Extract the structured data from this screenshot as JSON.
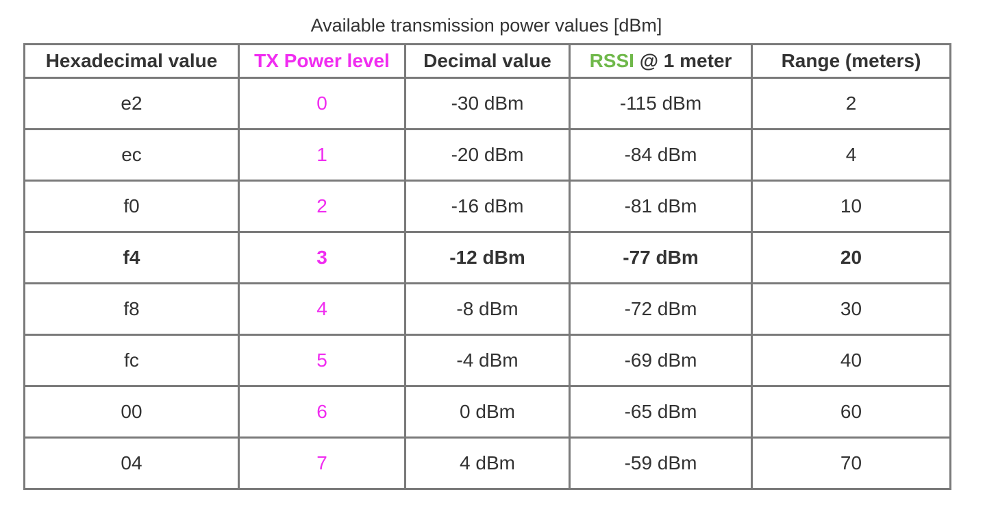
{
  "caption": "Available transmission power values [dBm]",
  "colors": {
    "tx_power": "#f02cf0",
    "rssi": "#6fb84a",
    "text": "#333333",
    "border": "#7a7a7a"
  },
  "table": {
    "headers": {
      "hex": "Hexadecimal value",
      "tx": "TX Power level",
      "decimal": "Decimal value",
      "rssi_label": "RSSI",
      "rssi_suffix": " @ 1 meter",
      "range": "Range (meters)"
    },
    "rows": [
      {
        "hex": "e2",
        "tx": "0",
        "decimal": "-30 dBm",
        "rssi": "-115 dBm",
        "range": "2"
      },
      {
        "hex": "ec",
        "tx": "1",
        "decimal": "-20 dBm",
        "rssi": "-84 dBm",
        "range": "4"
      },
      {
        "hex": "f0",
        "tx": "2",
        "decimal": "-16 dBm",
        "rssi": "-81 dBm",
        "range": "10"
      },
      {
        "hex": "f4",
        "tx": "3",
        "decimal": "-12 dBm",
        "rssi": "-77 dBm",
        "range": "20"
      },
      {
        "hex": "f8",
        "tx": "4",
        "decimal": "-8 dBm",
        "rssi": "-72 dBm",
        "range": "30"
      },
      {
        "hex": "fc",
        "tx": "5",
        "decimal": "-4 dBm",
        "rssi": "-69 dBm",
        "range": "40"
      },
      {
        "hex": "00",
        "tx": "6",
        "decimal": "0 dBm",
        "rssi": "-65 dBm",
        "range": "60"
      },
      {
        "hex": "04",
        "tx": "7",
        "decimal": "4 dBm",
        "rssi": "-59 dBm",
        "range": "70"
      }
    ]
  }
}
